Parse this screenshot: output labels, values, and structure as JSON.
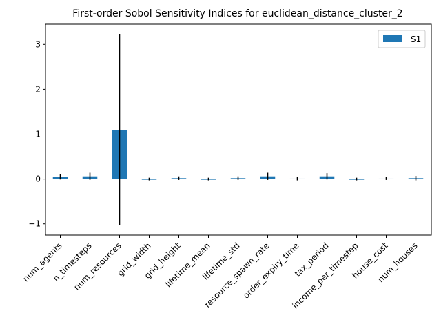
{
  "chart_data": {
    "type": "bar",
    "title": "First-order Sobol Sensitivity Indices for euclidean_distance_cluster_2",
    "xlabel": "",
    "ylabel": "",
    "categories": [
      "num_agents",
      "n_timesteps",
      "num_resources",
      "grid_width",
      "grid_height",
      "lifetime_mean",
      "lifetime_std",
      "resource_spawn_rate",
      "order_expiry_time",
      "tax_period",
      "income_per_timestep",
      "house_cost",
      "num_houses"
    ],
    "series": [
      {
        "name": "S1",
        "values": [
          0.05,
          0.06,
          1.1,
          0.0,
          0.02,
          0.0,
          0.02,
          0.06,
          0.01,
          0.06,
          0.0,
          0.01,
          0.02
        ],
        "errors": [
          0.06,
          0.08,
          2.13,
          0.03,
          0.04,
          0.03,
          0.04,
          0.08,
          0.04,
          0.07,
          0.03,
          0.03,
          0.05
        ]
      }
    ],
    "ylim": [
      -1.25,
      3.45
    ],
    "yticks": [
      -1,
      0,
      1,
      2,
      3
    ],
    "ytick_labels": [
      "−1",
      "0",
      "1",
      "2",
      "3"
    ],
    "legend_position": "top-right",
    "colors": {
      "bar": "#1f77b4",
      "error": "#000000"
    }
  }
}
